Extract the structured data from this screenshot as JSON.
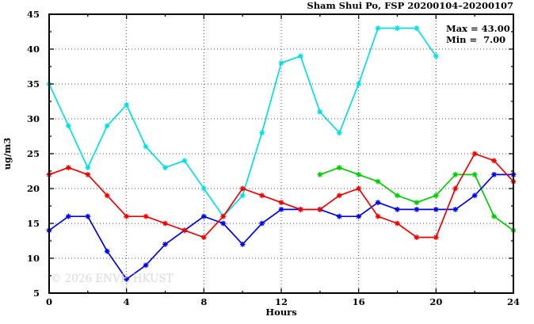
{
  "annotation": {
    "max_line": "Max = 43.00",
    "min_line": "Min =  7.00"
  },
  "watermark": "© 2026 ENVF, HKUST",
  "colors": {
    "cyan": "#00e0e0",
    "red": "#ee0000",
    "blue": "#0000ee",
    "green": "#00cc00",
    "grid": "#555555",
    "frame": "#000000",
    "watermark": "#d9d9d9"
  },
  "chart_data": {
    "type": "line",
    "title": "Sham Shui Po, FSP 20200104–20200107",
    "xlabel": "Hours",
    "ylabel": "ug/m3",
    "xlim": [
      0,
      24
    ],
    "ylim": [
      5,
      45
    ],
    "xticks_major": [
      0,
      4,
      8,
      12,
      16,
      20,
      24
    ],
    "xticks_minor": [
      2,
      6,
      10,
      14,
      18,
      22
    ],
    "yticks_major": [
      5,
      10,
      15,
      20,
      25,
      30,
      35,
      40,
      45
    ],
    "yticks_minor": [
      7.5,
      12.5,
      17.5,
      22.5,
      27.5,
      32.5,
      37.5,
      42.5
    ],
    "grid": true,
    "legend": "none",
    "marker": "asterisk",
    "stats": {
      "max": 43.0,
      "min": 7.0
    },
    "series": [
      {
        "name": "cyan",
        "color": "#00e0e0",
        "x": [
          0,
          1,
          2,
          3,
          4,
          5,
          6,
          7,
          8,
          9,
          10,
          11,
          12,
          13,
          14,
          15,
          16,
          17,
          18,
          19,
          20
        ],
        "values": [
          35,
          29,
          23,
          29,
          32,
          26,
          23,
          24,
          20,
          16,
          19,
          28,
          38,
          39,
          31,
          28,
          35,
          43,
          43,
          43,
          39
        ]
      },
      {
        "name": "green",
        "color": "#00cc00",
        "x": [
          14,
          15,
          16,
          17,
          18,
          19,
          20,
          21,
          22,
          23,
          24
        ],
        "values": [
          22,
          23,
          22,
          21,
          19,
          18,
          19,
          22,
          22,
          16,
          14
        ]
      },
      {
        "name": "blue",
        "color": "#0000ee",
        "x": [
          0,
          1,
          2,
          3,
          4,
          5,
          6,
          7,
          8,
          9,
          10,
          11,
          12,
          13,
          14,
          15,
          16,
          17,
          18,
          19,
          20,
          21,
          22,
          23,
          24
        ],
        "values": [
          14,
          16,
          16,
          11,
          7,
          9,
          12,
          14,
          16,
          15,
          12,
          15,
          17,
          17,
          17,
          16,
          16,
          18,
          17,
          17,
          17,
          17,
          19,
          22,
          22
        ]
      },
      {
        "name": "red",
        "color": "#ee0000",
        "x": [
          0,
          1,
          2,
          3,
          4,
          5,
          6,
          7,
          8,
          9,
          10,
          11,
          12,
          13,
          14,
          15,
          16,
          17,
          18,
          19,
          20,
          21,
          22,
          23,
          24
        ],
        "values": [
          22,
          23,
          22,
          19,
          16,
          16,
          15,
          14,
          13,
          16,
          20,
          19,
          18,
          17,
          17,
          19,
          20,
          16,
          15,
          13,
          13,
          20,
          25,
          24,
          21
        ]
      }
    ]
  }
}
